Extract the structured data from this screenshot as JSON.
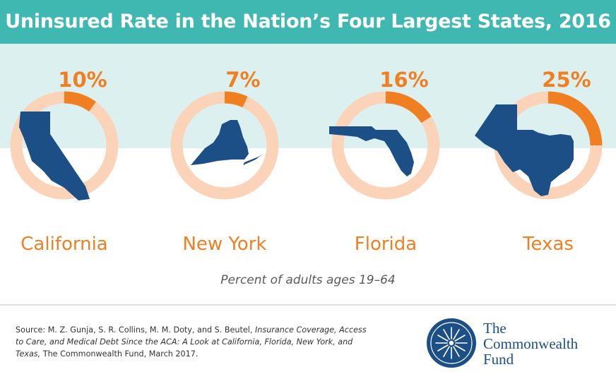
{
  "header": {
    "title": "Uninsured Rate in the Nation’s Four Largest States, 2016"
  },
  "caption": "Percent of adults ages 19–64",
  "source": {
    "prefix": "Source: M. Z. Gunja, S. R. Collins, M. M. Doty, and S. Beutel, ",
    "title": "Insurance Coverage, Access to Care, and Medical Debt Since the ACA: A Look at California, Florida, New York, and Texas,",
    "suffix": " The Commonwealth Fund, March 2017."
  },
  "logo": {
    "lines": [
      "The",
      "Commonwealth",
      "Fund"
    ],
    "icon": "commonwealth-fund-star-icon"
  },
  "colors": {
    "title_bar": "#3fb8b2",
    "band": "#dcf0f0",
    "accent": "#f07f22",
    "ring_track": "#fbd3b8",
    "state_fill": "#1b4f86",
    "logo": "#1b4f86"
  },
  "chart_data": {
    "type": "pie",
    "title": "Uninsured Rate in the Nation’s Four Largest States, 2016",
    "subtitle": "Percent of adults ages 19–64",
    "unit": "%",
    "categories": [
      "California",
      "New York",
      "Florida",
      "Texas"
    ],
    "values": [
      10,
      7,
      16,
      25
    ],
    "labels": [
      "10%",
      "7%",
      "16%",
      "25%"
    ]
  }
}
